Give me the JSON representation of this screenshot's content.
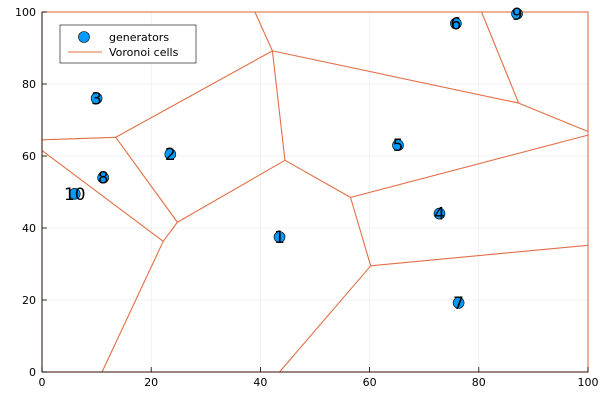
{
  "chart_data": {
    "type": "scatter",
    "title": "",
    "xlabel": "",
    "ylabel": "",
    "xlim": [
      0,
      100
    ],
    "ylim": [
      0,
      100
    ],
    "xticks": [
      0,
      20,
      40,
      60,
      80,
      100
    ],
    "yticks": [
      0,
      20,
      40,
      60,
      80,
      100
    ],
    "grid": true,
    "legend_position": "top-left",
    "series": [
      {
        "name": "generators",
        "kind": "scatter",
        "color": "#009AFA",
        "points": [
          {
            "label": "1",
            "x": 43.5,
            "y": 37.5
          },
          {
            "label": "2",
            "x": 23.5,
            "y": 60.5
          },
          {
            "label": "3",
            "x": 10.0,
            "y": 76.0
          },
          {
            "label": "4",
            "x": 72.8,
            "y": 44.0
          },
          {
            "label": "5",
            "x": 65.2,
            "y": 63.0
          },
          {
            "label": "6",
            "x": 75.8,
            "y": 96.8
          },
          {
            "label": "7",
            "x": 76.3,
            "y": 19.2
          },
          {
            "label": "8",
            "x": 11.2,
            "y": 54.0
          },
          {
            "label": "9",
            "x": 87.0,
            "y": 99.5
          },
          {
            "label": "10",
            "x": 6.0,
            "y": 49.5
          }
        ]
      },
      {
        "name": "Voronoi cells",
        "kind": "line",
        "color": "#E26F46",
        "segments": [
          [
            [
              0,
              64.5
            ],
            [
              13.5,
              65.2
            ]
          ],
          [
            [
              13.5,
              65.2
            ],
            [
              42.2,
              89.2
            ]
          ],
          [
            [
              42.2,
              89.2
            ],
            [
              39.0,
              100
            ]
          ],
          [
            [
              42.2,
              89.2
            ],
            [
              87.3,
              74.7
            ]
          ],
          [
            [
              87.3,
              74.7
            ],
            [
              80.5,
              100
            ]
          ],
          [
            [
              87.3,
              74.7
            ],
            [
              100,
              66.8
            ]
          ],
          [
            [
              42.2,
              89.2
            ],
            [
              44.5,
              58.8
            ]
          ],
          [
            [
              13.5,
              65.2
            ],
            [
              24.8,
              41.6
            ]
          ],
          [
            [
              0,
              61.5
            ],
            [
              22.2,
              36.3
            ]
          ],
          [
            [
              24.8,
              41.6
            ],
            [
              22.2,
              36.3
            ]
          ],
          [
            [
              22.2,
              36.3
            ],
            [
              11.0,
              0
            ]
          ],
          [
            [
              24.8,
              41.6
            ],
            [
              44.5,
              58.8
            ]
          ],
          [
            [
              44.5,
              58.8
            ],
            [
              56.5,
              48.5
            ]
          ],
          [
            [
              56.5,
              48.5
            ],
            [
              100,
              65.8
            ]
          ],
          [
            [
              56.5,
              48.5
            ],
            [
              60.2,
              29.5
            ]
          ],
          [
            [
              60.2,
              29.5
            ],
            [
              43.5,
              0
            ]
          ],
          [
            [
              60.2,
              29.5
            ],
            [
              100,
              35.2
            ]
          ]
        ]
      }
    ]
  }
}
